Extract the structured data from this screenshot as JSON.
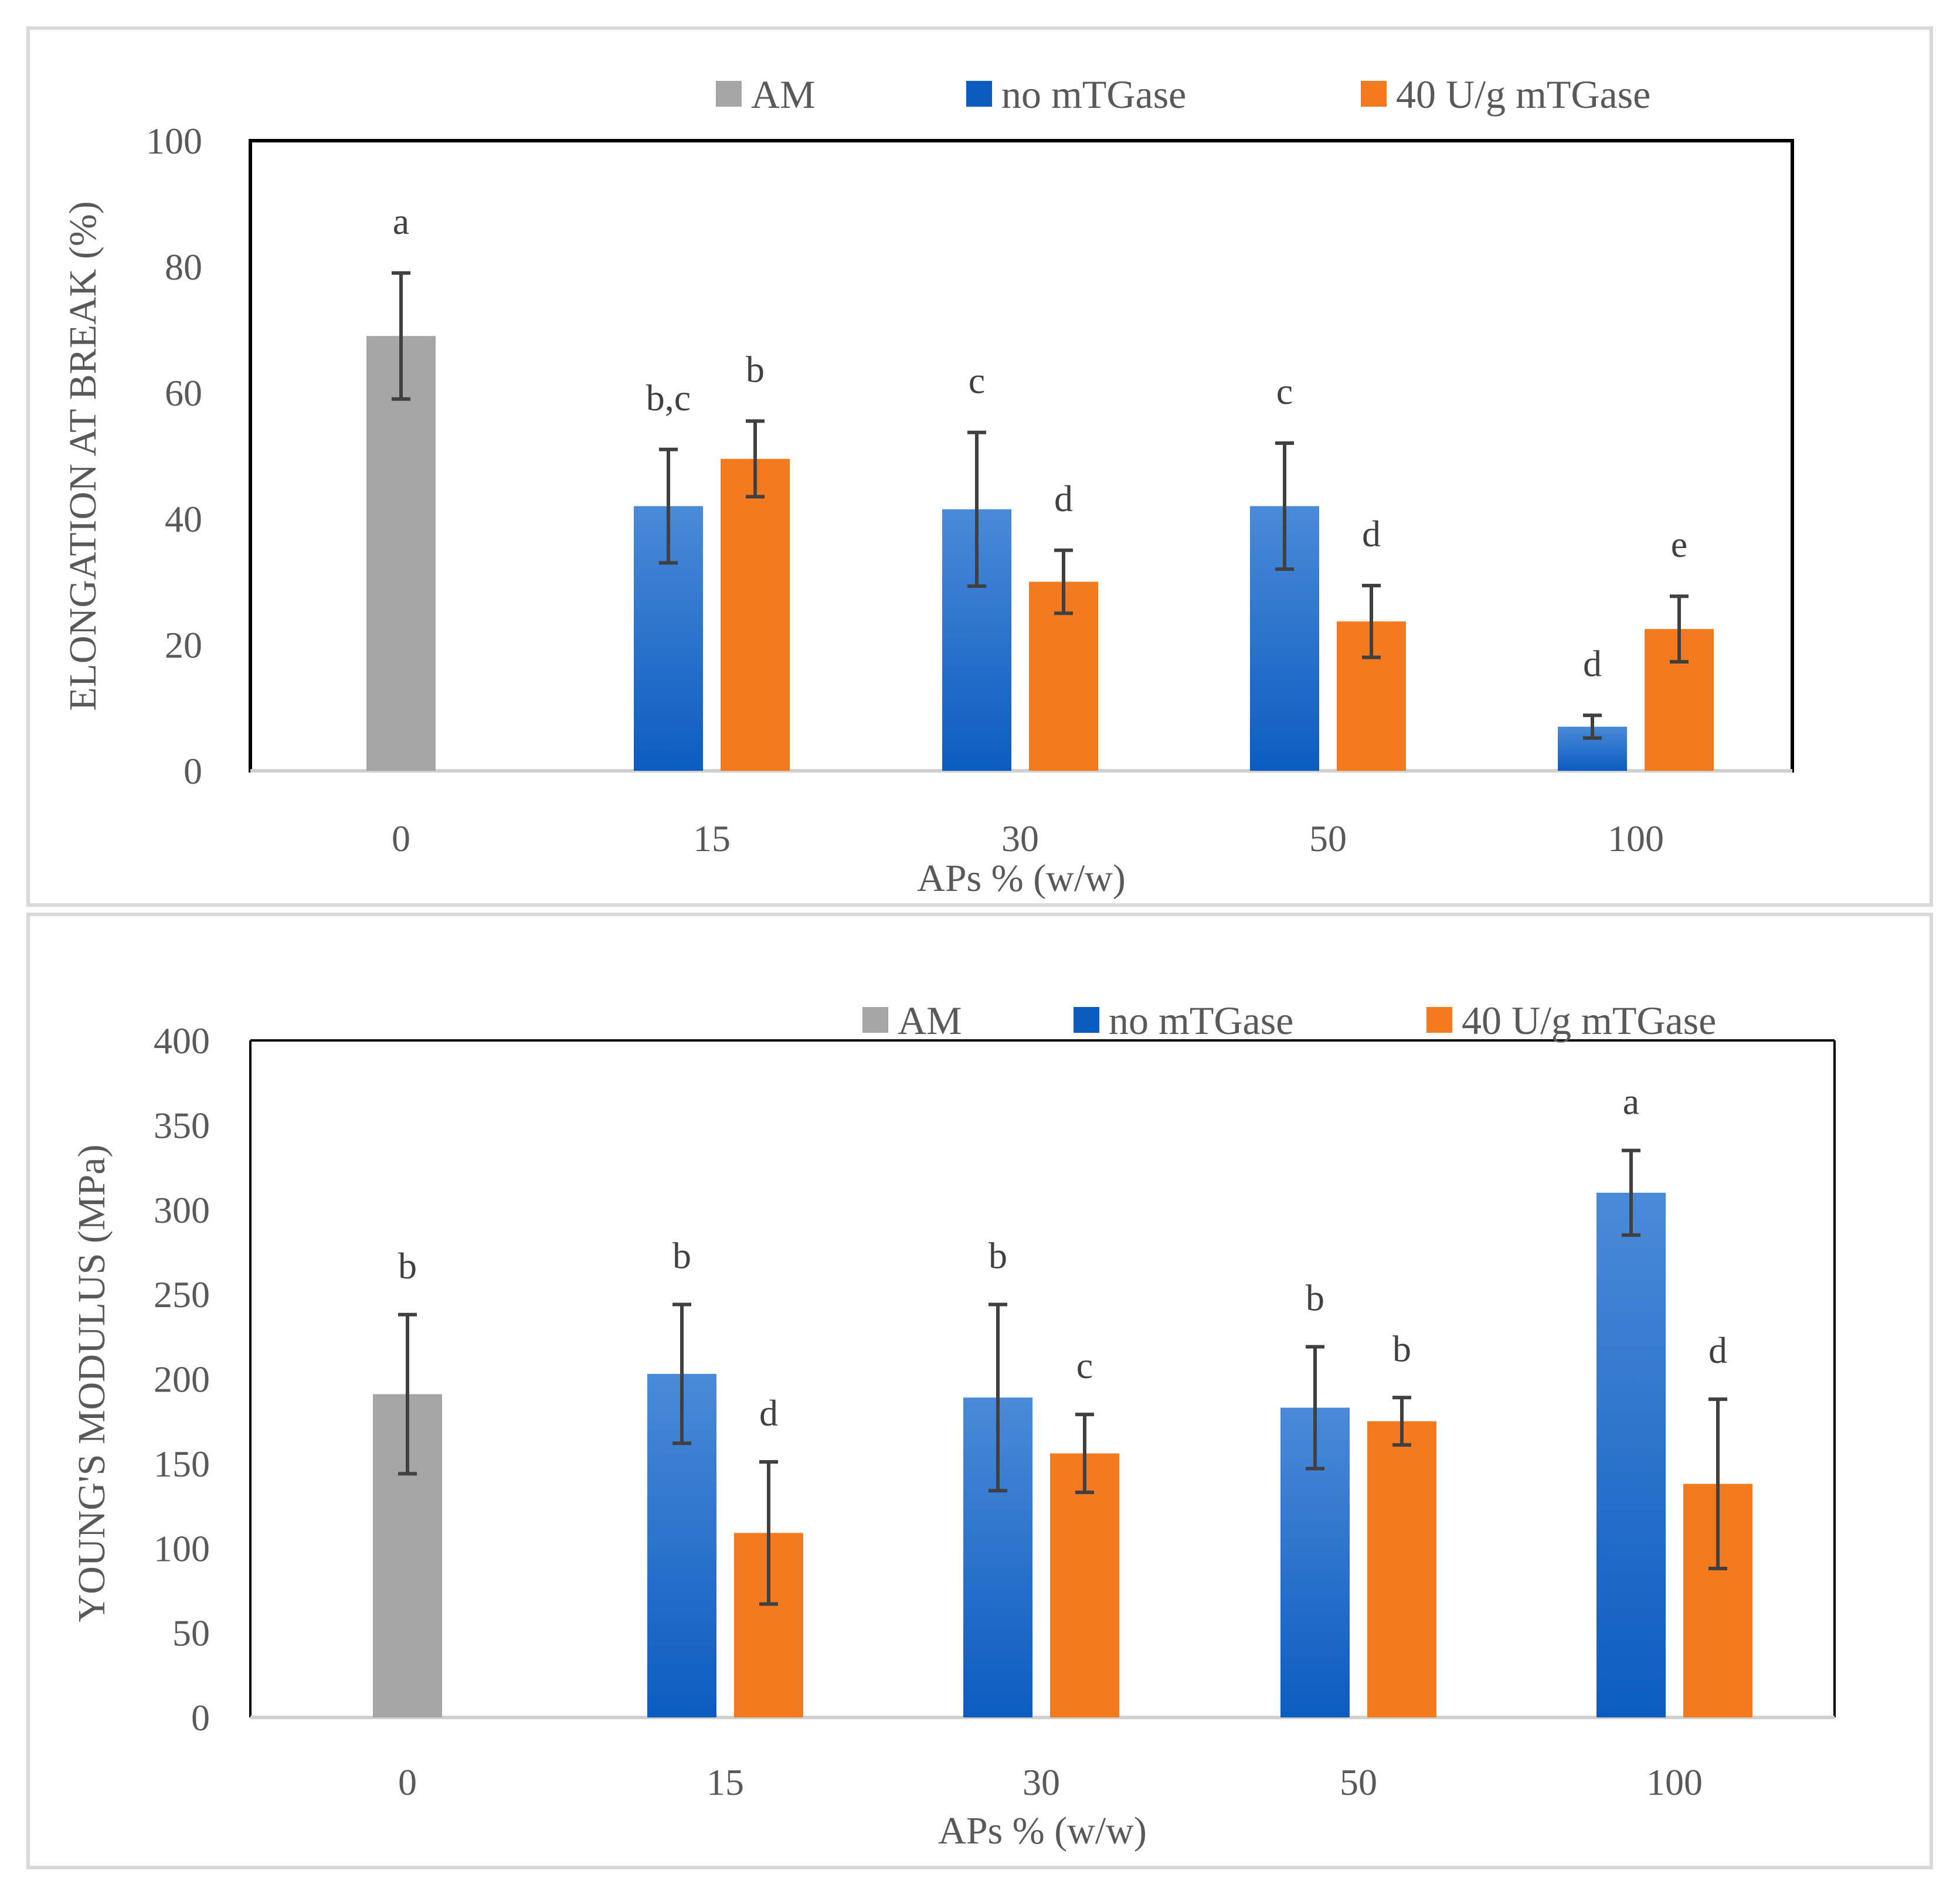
{
  "colors": {
    "am": "#a5a5a5",
    "no_mtgase_top": "#4a8ad8",
    "no_mtgase_bottom": "#0c5cc0",
    "mtgase": "#f47a20",
    "error_bar": "#404040",
    "panel_border": "#d9d9d9",
    "axis_text": "#595959"
  },
  "chart_data": [
    {
      "type": "bar",
      "title": "",
      "xlabel": "APs % (w/w)",
      "ylabel": "ELONGATION AT BREAK (%)",
      "ylim": [
        0,
        100
      ],
      "yticks": [
        0,
        20,
        40,
        60,
        80,
        100
      ],
      "categories": [
        "0",
        "15",
        "30",
        "50",
        "100"
      ],
      "legend": [
        "AM",
        "no mTGase",
        "40 U/g mTGase"
      ],
      "series": [
        {
          "name": "AM",
          "values": [
            69,
            null,
            null,
            null,
            null
          ],
          "errors": [
            10,
            null,
            null,
            null,
            null
          ],
          "letters": [
            "a",
            null,
            null,
            null,
            null
          ]
        },
        {
          "name": "no mTGase",
          "values": [
            null,
            42,
            41.5,
            42,
            7
          ],
          "errors": [
            null,
            9,
            12.2,
            10,
            1.8
          ],
          "letters": [
            null,
            "b,c",
            "c",
            "c",
            "d"
          ]
        },
        {
          "name": "40 U/g mTGase",
          "values": [
            null,
            49.5,
            30,
            23.7,
            22.5
          ],
          "errors": [
            null,
            6,
            5,
            5.7,
            5.2
          ],
          "letters": [
            null,
            "b",
            "d",
            "d",
            "e"
          ]
        }
      ]
    },
    {
      "type": "bar",
      "title": "",
      "xlabel": "APs % (w/w)",
      "ylabel": "YOUNG'S MODULUS (MPa)",
      "ylim": [
        0,
        400
      ],
      "yticks": [
        0,
        50,
        100,
        150,
        200,
        250,
        300,
        350,
        400
      ],
      "categories": [
        "0",
        "15",
        "30",
        "50",
        "100"
      ],
      "legend": [
        "AM",
        "no mTGase",
        "40 U/g mTGase"
      ],
      "series": [
        {
          "name": "AM",
          "values": [
            191,
            null,
            null,
            null,
            null
          ],
          "errors": [
            47,
            null,
            null,
            null,
            null
          ],
          "letters": [
            "b",
            null,
            null,
            null,
            null
          ]
        },
        {
          "name": "no mTGase",
          "values": [
            null,
            203,
            189,
            183,
            310
          ],
          "errors": [
            null,
            41,
            55,
            36,
            25
          ],
          "letters": [
            null,
            "b",
            "b",
            "b",
            "a"
          ]
        },
        {
          "name": "40 U/g mTGase",
          "values": [
            null,
            109,
            156,
            175,
            138
          ],
          "errors": [
            null,
            42,
            23,
            14,
            50
          ],
          "letters": [
            null,
            "d",
            "c",
            "b",
            "d"
          ]
        }
      ]
    }
  ]
}
